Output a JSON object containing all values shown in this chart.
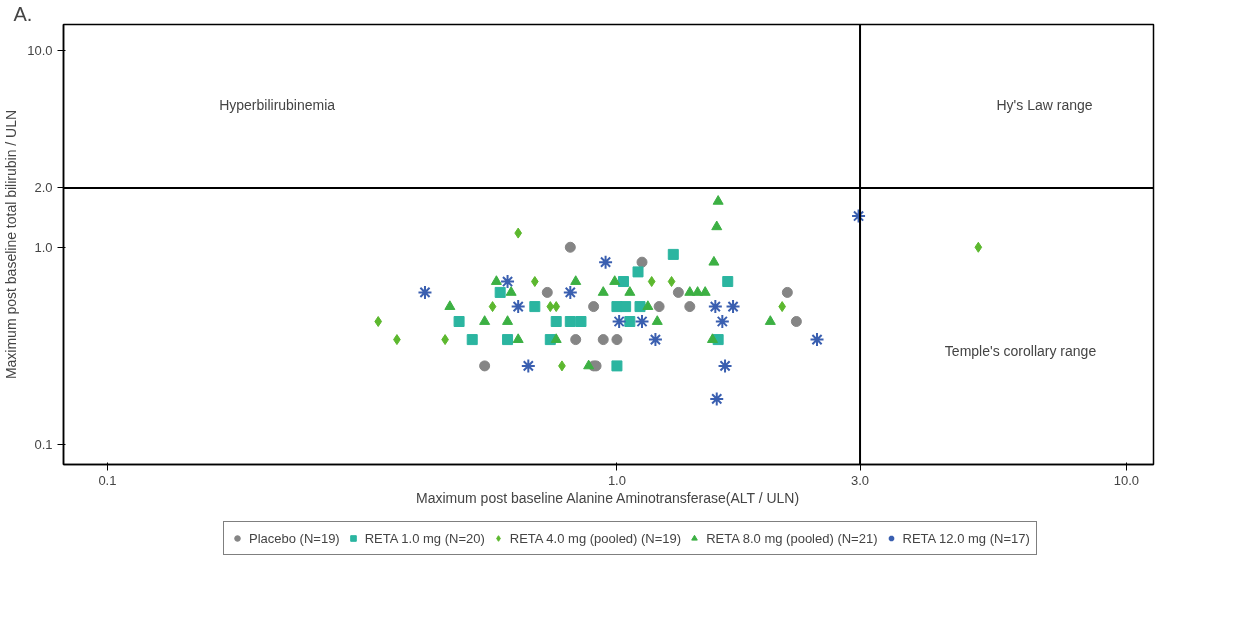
{
  "chart_data": {
    "type": "scatter",
    "xlabel": "Maximum post baseline Alanine Aminotransferase(ALT / ULN)",
    "ylabel": "Maximum post baseline total bilirubin / ULN",
    "log": "xy",
    "grid": false,
    "legend": "bottom",
    "xlim": [
      0.082,
      11.3
    ],
    "ylim": [
      0.079,
      13.5
    ],
    "xticks": [
      0.1,
      {
        "value": 1,
        "label": "1.0"
      },
      {
        "value": 3,
        "label": "3.0"
      },
      {
        "value": 10,
        "label": "10.0"
      }
    ],
    "yticks": [
      0.1,
      {
        "value": 1,
        "label": "1.0"
      },
      {
        "value": 2,
        "label": "2.0"
      },
      {
        "value": 10,
        "label": "10.0"
      }
    ],
    "ref_lines": [
      {
        "axis": "x",
        "value": 3,
        "label": null,
        "color": "#000000"
      },
      {
        "axis": "y",
        "value": 2,
        "label": null,
        "color": "#000000"
      }
    ],
    "annotations": [
      "A.",
      "Hyperbilirubinemia",
      "Hy's Law range",
      "Temple's corollary range"
    ],
    "series": [
      {
        "name": "Placebo (N=19)",
        "color": "#858585",
        "marker": "circle",
        "x": [
          0.81,
          0.73,
          0.9,
          0.83,
          0.55,
          0.91,
          1.12,
          1.32,
          1.39,
          2.16,
          2.25,
          0.94,
          1.0,
          0.9,
          1.21
        ],
        "values": [
          1.0,
          0.59,
          0.5,
          0.34,
          0.25,
          0.25,
          0.84,
          0.59,
          0.5,
          0.59,
          0.42,
          0.34,
          0.34,
          0.25,
          0.5
        ]
      },
      {
        "name": "RETA 1.0 mg (N=20)",
        "color": "#2bb5a0",
        "marker": "square",
        "x": [
          0.59,
          0.69,
          0.49,
          0.76,
          0.81,
          0.85,
          0.52,
          0.61,
          0.74,
          1.29,
          1.1,
          1.03,
          1.65,
          1.0,
          1.04,
          1.11,
          1.06,
          1.58,
          1.0
        ],
        "values": [
          0.59,
          0.5,
          0.42,
          0.42,
          0.42,
          0.42,
          0.34,
          0.34,
          0.34,
          0.92,
          0.75,
          0.67,
          0.67,
          0.5,
          0.5,
          0.5,
          0.42,
          0.34,
          0.25
        ]
      },
      {
        "name": "RETA 4.0 mg (pooled) (N=19)",
        "color": "#5cb82e",
        "marker": "diamond",
        "x": [
          0.64,
          0.69,
          0.57,
          0.74,
          0.76,
          0.34,
          0.37,
          0.46,
          0.78,
          1.17,
          1.28,
          2.11,
          5.12
        ],
        "values": [
          1.18,
          0.67,
          0.5,
          0.5,
          0.5,
          0.42,
          0.34,
          0.34,
          0.25,
          0.67,
          0.67,
          0.5,
          1.0
        ]
      },
      {
        "name": "RETA 8.0 mg (pooled) (N=21)",
        "color": "#3cb043",
        "marker": "triangle",
        "x": [
          0.58,
          0.83,
          0.62,
          0.94,
          0.47,
          0.55,
          0.61,
          0.64,
          0.76,
          0.88,
          1.58,
          1.57,
          1.55,
          0.99,
          1.06,
          1.15,
          1.39,
          1.44,
          1.49,
          1.2,
          2.0,
          1.54
        ],
        "values": [
          0.67,
          0.67,
          0.59,
          0.59,
          0.5,
          0.42,
          0.42,
          0.34,
          0.34,
          0.25,
          1.71,
          1.27,
          0.84,
          0.67,
          0.59,
          0.5,
          0.59,
          0.59,
          0.59,
          0.42,
          0.42,
          0.34
        ]
      },
      {
        "name": "RETA 12.0 mg (N=17)",
        "color": "#3a5fb0",
        "marker": "cross",
        "x": [
          0.95,
          0.61,
          0.42,
          0.81,
          0.64,
          0.67,
          1.56,
          1.69,
          1.01,
          1.12,
          1.61,
          1.19,
          2.47,
          1.63,
          1.57,
          2.98
        ],
        "values": [
          0.84,
          0.67,
          0.59,
          0.59,
          0.5,
          0.25,
          0.5,
          0.5,
          0.42,
          0.42,
          0.42,
          0.34,
          0.34,
          0.25,
          0.17,
          1.44
        ]
      }
    ]
  }
}
